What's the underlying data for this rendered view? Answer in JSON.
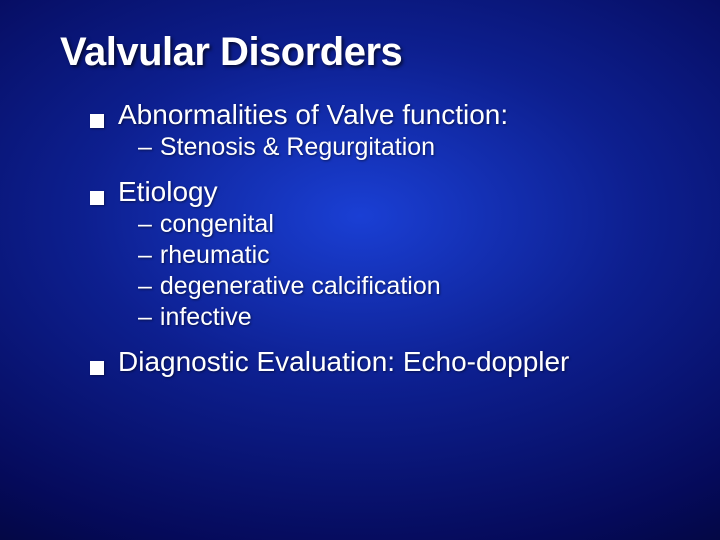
{
  "slide": {
    "title": "Valvular Disorders",
    "background": {
      "type": "radial-gradient",
      "center_color": "#1a3fd4",
      "mid_color": "#0d1f8f",
      "outer_color": "#050a5a",
      "edge_color": "#010320"
    },
    "text_color": "#ffffff",
    "title_fontsize": 40,
    "bullet_fontsize": 28,
    "sub_fontsize": 25,
    "bullet_marker_color": "#ffffff",
    "bullet_marker_size": 14,
    "bullets": [
      {
        "text": "Abnormalities of Valve function:",
        "subs": [
          "Stenosis & Regurgitation"
        ]
      },
      {
        "text": "Etiology",
        "subs": [
          "congenital",
          "rheumatic",
          "degenerative calcification",
          "infective"
        ]
      },
      {
        "text": "Diagnostic Evaluation: Echo-doppler",
        "subs": []
      }
    ]
  }
}
